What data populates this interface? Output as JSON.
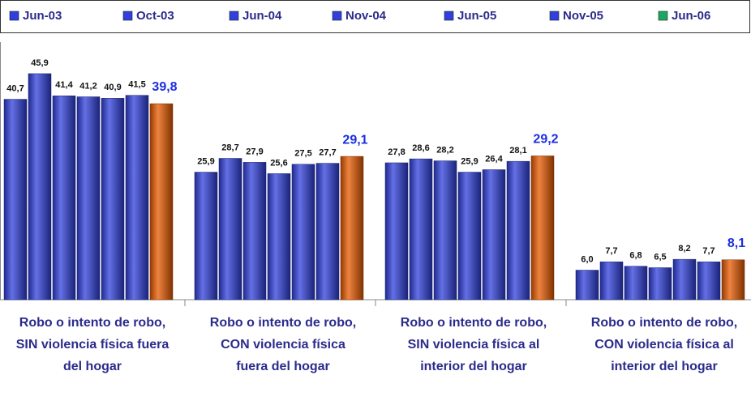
{
  "chart_data": {
    "type": "bar",
    "categories": [
      "Robo o intento de robo, SIN violencia física fuera del hogar",
      "Robo o intento de robo, CON violencia física fuera del hogar",
      "Robo o intento de robo, SIN violencia física al interior del hogar",
      "Robo o intento de robo, CON violencia física al interior del hogar"
    ],
    "series": [
      {
        "name": "Jun-03",
        "color": "#3040dc",
        "legend_color": "#3040dc",
        "values": [
          40.7,
          25.9,
          27.8,
          6.0
        ],
        "value_labels": [
          "40,7",
          "25,9",
          "27,8",
          "6,0"
        ]
      },
      {
        "name": "Oct-03",
        "color": "#3040dc",
        "legend_color": "#3040dc",
        "values": [
          45.9,
          28.7,
          28.6,
          7.7
        ],
        "value_labels": [
          "45,9",
          "28,7",
          "28,6",
          "7,7"
        ]
      },
      {
        "name": "Jun-04",
        "color": "#3040dc",
        "legend_color": "#3040dc",
        "values": [
          41.4,
          27.9,
          28.2,
          6.8
        ],
        "value_labels": [
          "41,4",
          "27,9",
          "28,2",
          "6,8"
        ]
      },
      {
        "name": "Nov-04",
        "color": "#3040dc",
        "legend_color": "#3040dc",
        "values": [
          41.2,
          25.6,
          25.9,
          6.5
        ],
        "value_labels": [
          "41,2",
          "25,6",
          "25,9",
          "6,5"
        ]
      },
      {
        "name": "Jun-05",
        "color": "#3040dc",
        "legend_color": "#3040dc",
        "values": [
          40.9,
          27.5,
          26.4,
          8.2
        ],
        "value_labels": [
          "40,9",
          "27,5",
          "26,4",
          "8,2"
        ]
      },
      {
        "name": "Nov-05",
        "color": "#3040dc",
        "legend_color": "#3040dc",
        "values": [
          41.5,
          27.7,
          28.1,
          7.7
        ],
        "value_labels": [
          "41,5",
          "27,7",
          "28,1",
          "7,7"
        ]
      },
      {
        "name": "Jun-06",
        "color": "#e85a00",
        "legend_color": "#1aa860",
        "values": [
          39.8,
          29.1,
          29.2,
          8.1
        ],
        "value_labels": [
          "39,8",
          "29,1",
          "29,2",
          "8,1"
        ]
      }
    ]
  }
}
